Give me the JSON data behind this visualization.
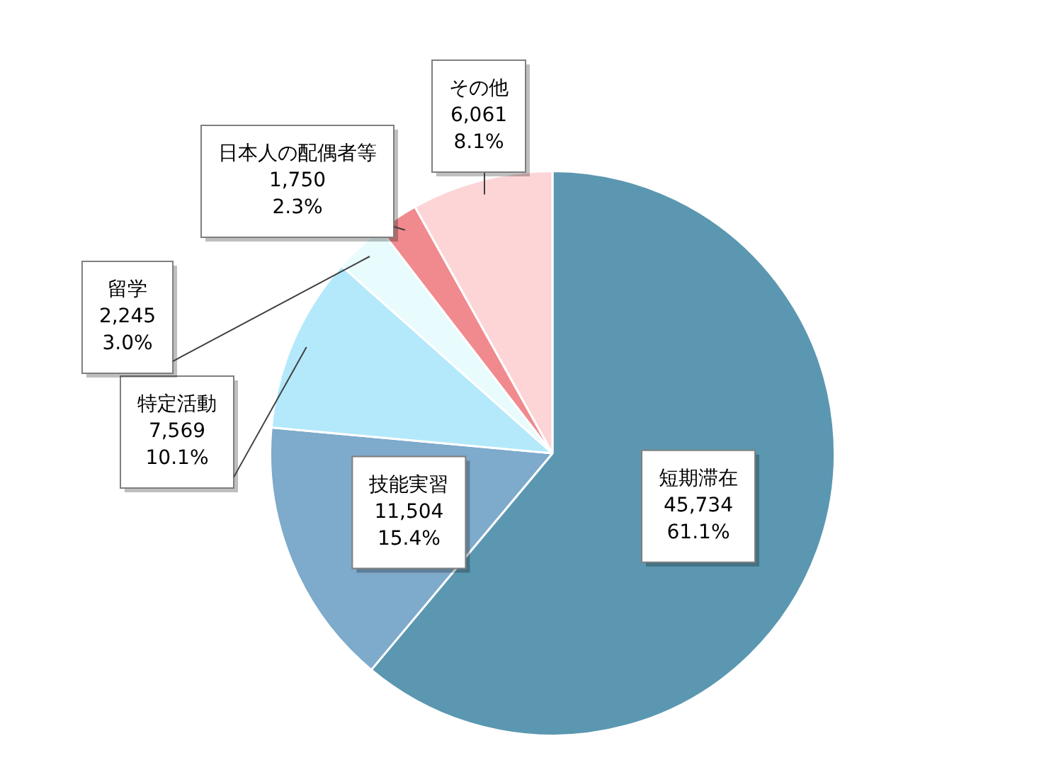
{
  "chart_data": {
    "type": "pie",
    "categories": [
      "短期滞在",
      "技能実習",
      "特定活動",
      "留学",
      "日本人の配偶者等",
      "その他"
    ],
    "values": [
      45734,
      11504,
      7569,
      2245,
      1750,
      6061
    ],
    "value_labels": [
      "45,734\n61.1%",
      "11,504\n15.4%",
      "7,569\n10.1%",
      "2,245\n3.0%",
      "1,750\n2.3%",
      "6,061\n8.1%"
    ],
    "colors": [
      "#5b97b1",
      "#7eaacb",
      "#b3e9fb",
      "#e8fbfd",
      "#f08a8e",
      "#fdd5d7"
    ],
    "legend": false
  }
}
